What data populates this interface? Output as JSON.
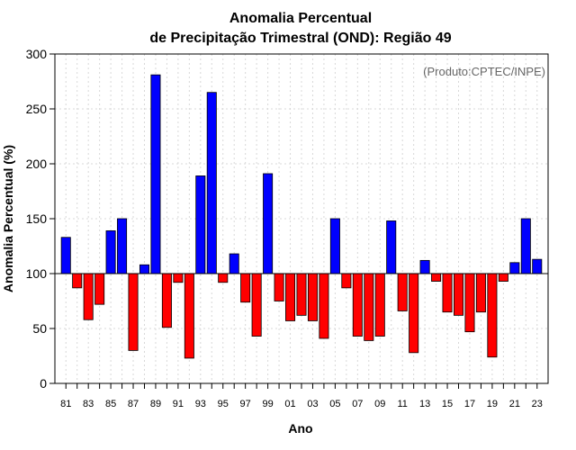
{
  "chart_data": {
    "type": "bar",
    "title": [
      "Anomalia Percentual",
      "de Precipitação Trimestral (OND): Região 49"
    ],
    "xlabel": "Ano",
    "ylabel": "Anomalia Percentual (%)",
    "annotation": "(Produto:CPTEC/INPE)",
    "ylim": [
      0,
      300
    ],
    "yticks": [
      0,
      50,
      100,
      150,
      200,
      250,
      300
    ],
    "baseline": 100,
    "grid": true,
    "categories": [
      "81",
      "82",
      "83",
      "84",
      "85",
      "86",
      "87",
      "88",
      "89",
      "90",
      "91",
      "92",
      "93",
      "94",
      "95",
      "96",
      "97",
      "98",
      "99",
      "00",
      "01",
      "02",
      "03",
      "04",
      "05",
      "06",
      "07",
      "08",
      "09",
      "10",
      "11",
      "12",
      "13",
      "14",
      "15",
      "16",
      "17",
      "18",
      "19",
      "20",
      "21",
      "22",
      "23"
    ],
    "xtick_labels": [
      "81",
      "83",
      "85",
      "87",
      "89",
      "91",
      "93",
      "95",
      "97",
      "99",
      "01",
      "03",
      "05",
      "07",
      "09",
      "11",
      "13",
      "15",
      "17",
      "19",
      "21",
      "23"
    ],
    "values": [
      133,
      87,
      58,
      72,
      139,
      150,
      30,
      108,
      281,
      51,
      92,
      23,
      189,
      265,
      92,
      118,
      74,
      43,
      191,
      75,
      57,
      62,
      57,
      41,
      150,
      87,
      43,
      39,
      43,
      148,
      66,
      28,
      112,
      93,
      65,
      62,
      47,
      65,
      24,
      93,
      110,
      150,
      113
    ],
    "colors": {
      "above": "#0000ff",
      "below": "#ff0000"
    }
  }
}
